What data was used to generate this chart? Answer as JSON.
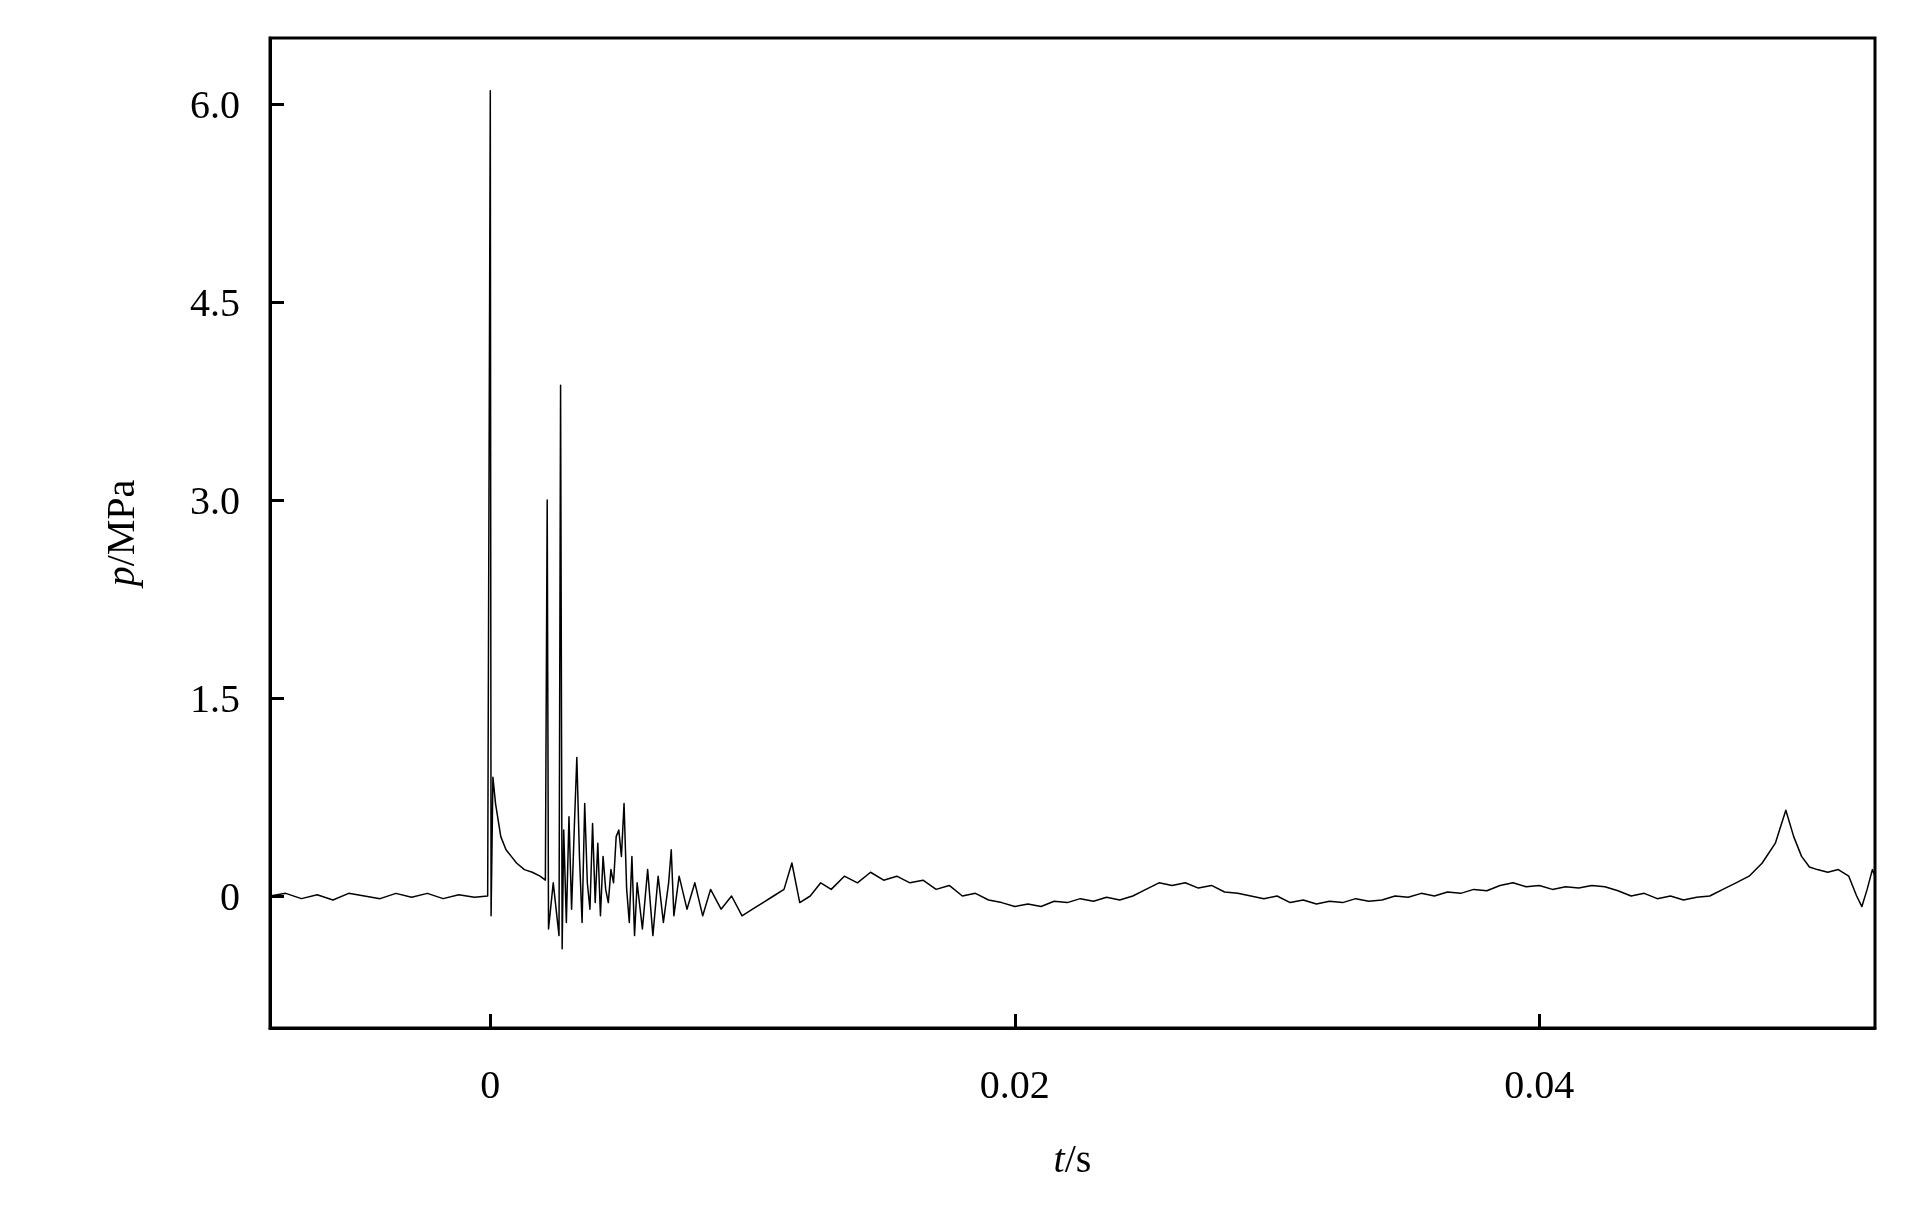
{
  "chart_data": {
    "type": "line",
    "xlabel": "t/s",
    "ylabel": "p/MPa",
    "xlim": [
      -0.0084,
      0.0528
    ],
    "ylim": [
      -1.0,
      6.5
    ],
    "xticks": [
      0,
      0.02,
      0.04
    ],
    "yticks": [
      0,
      {
        "value": 1.5,
        "label": "1.5"
      },
      {
        "value": 3,
        "label": "3.0"
      },
      {
        "value": 4.5,
        "label": "4.5"
      },
      {
        "value": 6,
        "label": "6.0"
      }
    ],
    "grid": false,
    "marker": "none",
    "line_style": "solid",
    "series": [
      {
        "color": "#000000",
        "x": [
          -0.0084,
          -0.0078,
          -0.0072,
          -0.0066,
          -0.006,
          -0.0054,
          -0.0048,
          -0.0042,
          -0.0036,
          -0.003,
          -0.0024,
          -0.0018,
          -0.0012,
          -0.0006,
          -0.0001,
          0,
          3e-05,
          0.0001,
          0.0002,
          0.0004,
          0.0006,
          0.0008,
          0.001,
          0.0013,
          0.0016,
          0.0019,
          0.0021,
          0.00217,
          0.00222,
          0.0024,
          0.00262,
          0.00268,
          0.00274,
          0.0028,
          0.0029,
          0.003,
          0.0031,
          0.0032,
          0.0033,
          0.0034,
          0.0035,
          0.0036,
          0.0037,
          0.0038,
          0.0039,
          0.004,
          0.0041,
          0.0042,
          0.0043,
          0.0044,
          0.0045,
          0.0046,
          0.0047,
          0.0048,
          0.0049,
          0.005,
          0.0051,
          0.0052,
          0.0053,
          0.0054,
          0.0055,
          0.0056,
          0.0058,
          0.006,
          0.0062,
          0.0064,
          0.0066,
          0.0068,
          0.0069,
          0.007,
          0.0072,
          0.0075,
          0.0078,
          0.0081,
          0.0084,
          0.0088,
          0.0092,
          0.0096,
          0.01,
          0.0104,
          0.0108,
          0.0112,
          0.0115,
          0.0118,
          0.0122,
          0.0126,
          0.013,
          0.0135,
          0.014,
          0.0145,
          0.015,
          0.0155,
          0.016,
          0.0165,
          0.017,
          0.0175,
          0.018,
          0.0185,
          0.019,
          0.0195,
          0.02,
          0.0205,
          0.021,
          0.0215,
          0.022,
          0.0225,
          0.023,
          0.0235,
          0.024,
          0.0245,
          0.025,
          0.0255,
          0.026,
          0.0265,
          0.027,
          0.0275,
          0.028,
          0.0285,
          0.029,
          0.0295,
          0.03,
          0.0305,
          0.031,
          0.0315,
          0.032,
          0.0325,
          0.033,
          0.0335,
          0.034,
          0.0345,
          0.035,
          0.0355,
          0.036,
          0.0365,
          0.037,
          0.0375,
          0.038,
          0.0385,
          0.039,
          0.0395,
          0.04,
          0.0405,
          0.041,
          0.0415,
          0.042,
          0.0425,
          0.043,
          0.0435,
          0.044,
          0.0445,
          0.045,
          0.0455,
          0.046,
          0.0465,
          0.047,
          0.0475,
          0.048,
          0.0485,
          0.049,
          0.0494,
          0.0497,
          0.05,
          0.0503,
          0.0506,
          0.051,
          0.0514,
          0.0518,
          0.0521,
          0.0523,
          0.0525,
          0.0527,
          0.0528
        ],
        "values": [
          0,
          0.02,
          -0.02,
          0.01,
          -0.03,
          0.02,
          0,
          -0.02,
          0.02,
          -0.01,
          0.02,
          -0.02,
          0.01,
          -0.01,
          0,
          6.1,
          -0.15,
          0.9,
          0.7,
          0.45,
          0.35,
          0.3,
          0.25,
          0.2,
          0.18,
          0.15,
          0.12,
          3.0,
          -0.25,
          0.1,
          -0.3,
          3.87,
          -0.4,
          0.5,
          -0.2,
          0.6,
          -0.1,
          0.5,
          1.05,
          0.3,
          -0.2,
          0.7,
          0.1,
          -0.1,
          0.55,
          -0.05,
          0.4,
          -0.15,
          0.3,
          0.05,
          -0.05,
          0.2,
          0.1,
          0.45,
          0.5,
          0.3,
          0.7,
          0.05,
          -0.2,
          0.3,
          -0.3,
          0.1,
          -0.25,
          0.2,
          -0.3,
          0.15,
          -0.2,
          0.1,
          0.35,
          -0.15,
          0.15,
          -0.1,
          0.1,
          -0.15,
          0.05,
          -0.1,
          0.0,
          -0.15,
          -0.1,
          -0.05,
          0.0,
          0.05,
          0.25,
          -0.05,
          0.0,
          0.1,
          0.05,
          0.15,
          0.1,
          0.18,
          0.12,
          0.15,
          0.1,
          0.12,
          0.05,
          0.08,
          0.0,
          0.02,
          -0.03,
          -0.05,
          -0.08,
          -0.06,
          -0.08,
          -0.04,
          -0.05,
          -0.02,
          -0.04,
          -0.01,
          -0.03,
          0.0,
          0.05,
          0.1,
          0.08,
          0.1,
          0.06,
          0.08,
          0.03,
          0.02,
          0.0,
          -0.02,
          0.0,
          -0.05,
          -0.03,
          -0.06,
          -0.04,
          -0.05,
          -0.02,
          -0.04,
          -0.03,
          0.0,
          -0.01,
          0.02,
          0.0,
          0.03,
          0.02,
          0.05,
          0.04,
          0.08,
          0.1,
          0.07,
          0.08,
          0.05,
          0.07,
          0.06,
          0.08,
          0.07,
          0.04,
          0.0,
          0.02,
          -0.02,
          0.0,
          -0.03,
          -0.01,
          0.0,
          0.05,
          0.1,
          0.15,
          0.25,
          0.4,
          0.65,
          0.45,
          0.3,
          0.22,
          0.2,
          0.18,
          0.2,
          0.15,
          0.0,
          -0.08,
          0.05,
          0.2,
          0.15
        ]
      }
    ]
  }
}
